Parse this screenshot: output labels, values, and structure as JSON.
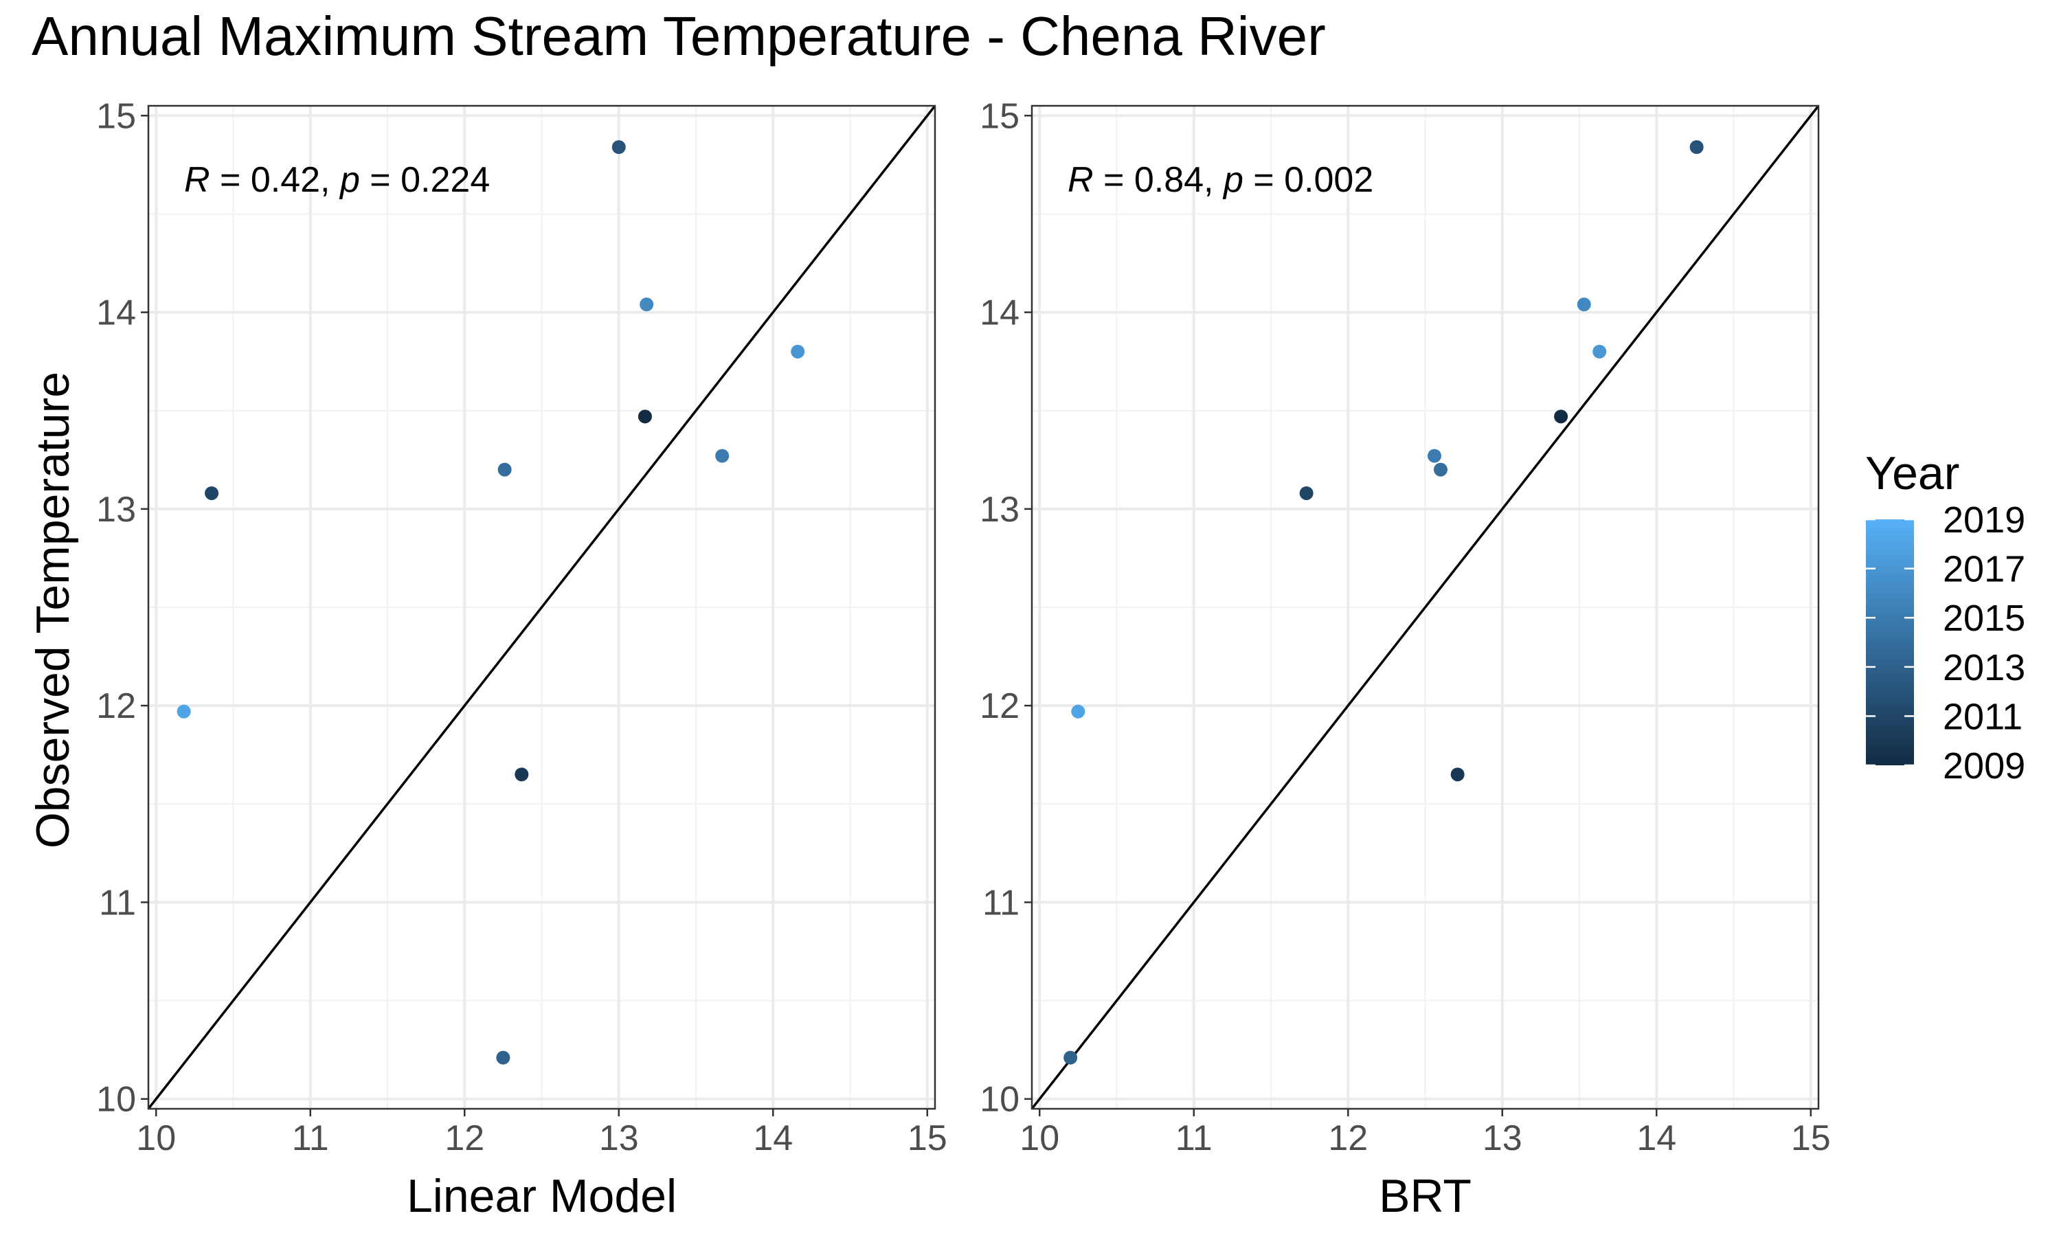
{
  "chart_data": {
    "type": "scatter",
    "title": "Annual Maximum Stream Temperature - Chena River",
    "ylabel": "Observed Temperature",
    "xlim": [
      9.95,
      15.05
    ],
    "ylim": [
      9.95,
      15.05
    ],
    "x_ticks": [
      10,
      11,
      12,
      13,
      14,
      15
    ],
    "y_ticks": [
      10,
      11,
      12,
      13,
      14,
      15
    ],
    "grid": true,
    "identity_line": true,
    "legend": {
      "title": "Year",
      "placement": "right",
      "ticks": [
        2019,
        2017,
        2015,
        2013,
        2011,
        2009
      ],
      "range": [
        2009,
        2019
      ],
      "color_low": "#132B43",
      "color_high": "#56B1F7"
    },
    "panels": [
      {
        "xlabel": "Linear Model",
        "annotation": {
          "r_label": "R",
          "r_text": " = 0.42, ",
          "p_label": "p",
          "p_text": " = 0.224"
        },
        "points": [
          {
            "x": 13.17,
            "y": 13.47,
            "year": 2009
          },
          {
            "x": 12.37,
            "y": 11.65,
            "year": 2010
          },
          {
            "x": 10.36,
            "y": 13.08,
            "year": 2011
          },
          {
            "x": 13.0,
            "y": 14.84,
            "year": 2012
          },
          {
            "x": 12.25,
            "y": 10.21,
            "year": 2013
          },
          {
            "x": 12.26,
            "y": 13.2,
            "year": 2014
          },
          {
            "x": 13.67,
            "y": 13.27,
            "year": 2015
          },
          {
            "x": 13.18,
            "y": 14.04,
            "year": 2016
          },
          {
            "x": 14.16,
            "y": 13.8,
            "year": 2017
          },
          {
            "x": 10.18,
            "y": 11.97,
            "year": 2018
          }
        ]
      },
      {
        "xlabel": "BRT",
        "annotation": {
          "r_label": "R",
          "r_text": " = 0.84, ",
          "p_label": "p",
          "p_text": " = 0.002"
        },
        "points": [
          {
            "x": 13.38,
            "y": 13.47,
            "year": 2009
          },
          {
            "x": 12.71,
            "y": 11.65,
            "year": 2010
          },
          {
            "x": 11.73,
            "y": 13.08,
            "year": 2011
          },
          {
            "x": 14.26,
            "y": 14.84,
            "year": 2012
          },
          {
            "x": 10.2,
            "y": 10.21,
            "year": 2013
          },
          {
            "x": 12.6,
            "y": 13.2,
            "year": 2014
          },
          {
            "x": 12.56,
            "y": 13.27,
            "year": 2015
          },
          {
            "x": 13.53,
            "y": 14.04,
            "year": 2016
          },
          {
            "x": 13.63,
            "y": 13.8,
            "year": 2017
          },
          {
            "x": 10.25,
            "y": 11.97,
            "year": 2018
          }
        ]
      }
    ]
  }
}
